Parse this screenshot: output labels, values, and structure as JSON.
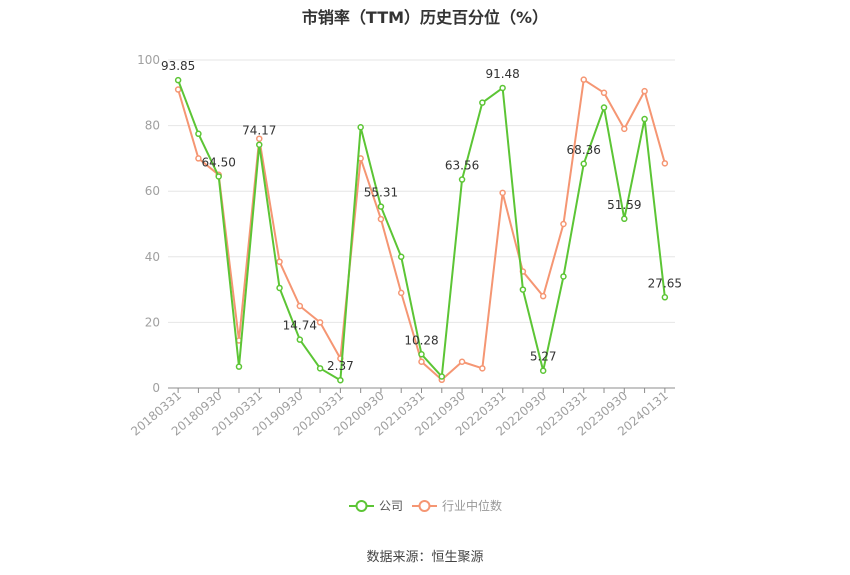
{
  "colors": {
    "company": "#5cc535",
    "industry": "#f59673",
    "grid": "#e6e6e6",
    "axis": "#8c8c8c",
    "tick_text": "#a0a0a0"
  },
  "chart_data": {
    "type": "line",
    "title": "市销率（TTM）历史百分位（%）",
    "xlabel": "",
    "ylabel": "",
    "ylim": [
      0,
      100
    ],
    "yticks": [
      0,
      20,
      40,
      60,
      80,
      100
    ],
    "grid": true,
    "legend_position": "bottom",
    "x": [
      "20180331",
      "20180630",
      "20180930",
      "20181231",
      "20190331",
      "20190630",
      "20190930",
      "20191231",
      "20200331",
      "20200630",
      "20200930",
      "20201231",
      "20210331",
      "20210630",
      "20210930",
      "20211231",
      "20220331",
      "20220630",
      "20220930",
      "20221231",
      "20230331",
      "20230630",
      "20230930",
      "20231231",
      "20240131"
    ],
    "xtick_labels": [
      "20180331",
      "20180930",
      "20190331",
      "20190930",
      "20200331",
      "20200930",
      "20210331",
      "20210930",
      "20220331",
      "20220930",
      "20230331",
      "20230930",
      "20240131"
    ],
    "series": [
      {
        "name": "公司",
        "values": [
          93.85,
          77.5,
          64.5,
          6.5,
          74.17,
          30.5,
          14.74,
          6.0,
          2.37,
          79.5,
          55.31,
          40.0,
          10.28,
          3.5,
          63.56,
          87.0,
          91.48,
          30.0,
          5.27,
          34.0,
          68.36,
          85.5,
          51.59,
          82.0,
          27.65
        ],
        "labels": [
          "93.85",
          "",
          "64.50",
          "",
          "74.17",
          "",
          "14.74",
          "",
          "2.37",
          "",
          "55.31",
          "",
          "10.28",
          "",
          "63.56",
          "",
          "91.48",
          "",
          "5.27",
          "",
          "68.36",
          "",
          "51.59",
          "",
          "27.65"
        ]
      },
      {
        "name": "行业中位数",
        "values": [
          91.0,
          70.0,
          65.0,
          14.5,
          76.0,
          38.5,
          25.0,
          20.0,
          9.0,
          70.0,
          51.5,
          29.0,
          8.0,
          2.5,
          8.0,
          6.0,
          59.5,
          35.5,
          28.0,
          50.0,
          94.0,
          90.0,
          79.0,
          90.5,
          68.5
        ]
      }
    ]
  },
  "footer": {
    "source": "数据来源：恒生聚源"
  }
}
